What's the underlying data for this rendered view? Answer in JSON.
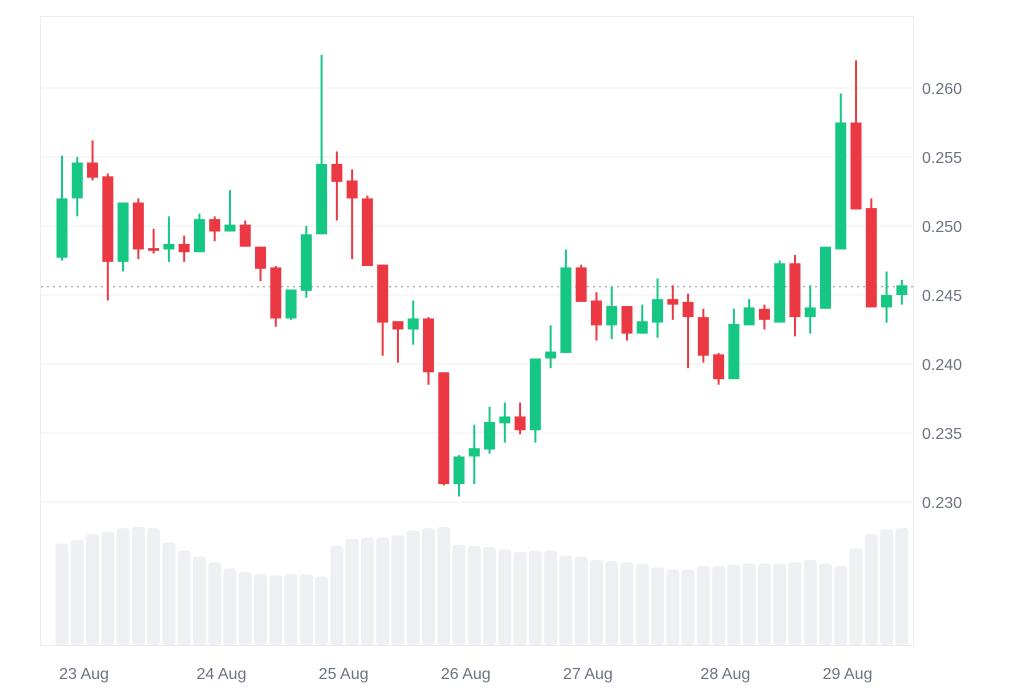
{
  "chart_data": {
    "type": "candlestick",
    "title": "",
    "xlabel": "",
    "ylabel": "",
    "ylim": [
      0.23,
      0.26
    ],
    "y_ticks": [
      "0.260",
      "0.255",
      "0.250",
      "0.245",
      "0.240",
      "0.235",
      "0.230"
    ],
    "x_ticks": [
      "23 Aug",
      "24 Aug",
      "25 Aug",
      "26 Aug",
      "27 Aug",
      "28 Aug",
      "29 Aug"
    ],
    "grid": true,
    "current_price_line": 0.2456,
    "colors": {
      "up": "#16c784",
      "down": "#ea3943",
      "volume": "#eef0f3",
      "grid": "#efefef",
      "axis_text": "#6b7280"
    },
    "candles": [
      {
        "o": 0.2477,
        "h": 0.2551,
        "l": 0.2475,
        "c": 0.252
      },
      {
        "o": 0.252,
        "h": 0.255,
        "l": 0.2507,
        "c": 0.2546
      },
      {
        "o": 0.2546,
        "h": 0.2562,
        "l": 0.2533,
        "c": 0.2535
      },
      {
        "o": 0.2536,
        "h": 0.2538,
        "l": 0.2446,
        "c": 0.2474
      },
      {
        "o": 0.2474,
        "h": 0.2517,
        "l": 0.2467,
        "c": 0.2517
      },
      {
        "o": 0.2517,
        "h": 0.252,
        "l": 0.2476,
        "c": 0.2483
      },
      {
        "o": 0.2484,
        "h": 0.2498,
        "l": 0.248,
        "c": 0.2482
      },
      {
        "o": 0.2483,
        "h": 0.2507,
        "l": 0.2474,
        "c": 0.2487
      },
      {
        "o": 0.2487,
        "h": 0.2493,
        "l": 0.2474,
        "c": 0.2481
      },
      {
        "o": 0.2481,
        "h": 0.2509,
        "l": 0.2481,
        "c": 0.2505
      },
      {
        "o": 0.2505,
        "h": 0.2507,
        "l": 0.2489,
        "c": 0.2496
      },
      {
        "o": 0.2496,
        "h": 0.2526,
        "l": 0.2496,
        "c": 0.2501
      },
      {
        "o": 0.2501,
        "h": 0.2504,
        "l": 0.2485,
        "c": 0.2485
      },
      {
        "o": 0.2485,
        "h": 0.2485,
        "l": 0.246,
        "c": 0.2469
      },
      {
        "o": 0.247,
        "h": 0.2471,
        "l": 0.2427,
        "c": 0.2433
      },
      {
        "o": 0.2433,
        "h": 0.2454,
        "l": 0.2432,
        "c": 0.2454
      },
      {
        "o": 0.2453,
        "h": 0.25,
        "l": 0.2448,
        "c": 0.2494
      },
      {
        "o": 0.2494,
        "h": 0.2624,
        "l": 0.2494,
        "c": 0.2545
      },
      {
        "o": 0.2545,
        "h": 0.2554,
        "l": 0.2504,
        "c": 0.2532
      },
      {
        "o": 0.2533,
        "h": 0.2541,
        "l": 0.2476,
        "c": 0.252
      },
      {
        "o": 0.252,
        "h": 0.2522,
        "l": 0.2471,
        "c": 0.2471
      },
      {
        "o": 0.2472,
        "h": 0.2472,
        "l": 0.2406,
        "c": 0.243
      },
      {
        "o": 0.2431,
        "h": 0.2431,
        "l": 0.2401,
        "c": 0.2425
      },
      {
        "o": 0.2425,
        "h": 0.2446,
        "l": 0.2414,
        "c": 0.2433
      },
      {
        "o": 0.2433,
        "h": 0.2434,
        "l": 0.2385,
        "c": 0.2394
      },
      {
        "o": 0.2394,
        "h": 0.2394,
        "l": 0.2312,
        "c": 0.2313
      },
      {
        "o": 0.2313,
        "h": 0.2334,
        "l": 0.2304,
        "c": 0.2333
      },
      {
        "o": 0.2333,
        "h": 0.2356,
        "l": 0.2313,
        "c": 0.2339
      },
      {
        "o": 0.2338,
        "h": 0.2369,
        "l": 0.2335,
        "c": 0.2358
      },
      {
        "o": 0.2357,
        "h": 0.2372,
        "l": 0.2343,
        "c": 0.2362
      },
      {
        "o": 0.2362,
        "h": 0.2372,
        "l": 0.2349,
        "c": 0.2352
      },
      {
        "o": 0.2352,
        "h": 0.2404,
        "l": 0.2343,
        "c": 0.2404
      },
      {
        "o": 0.2404,
        "h": 0.2428,
        "l": 0.2397,
        "c": 0.2409
      },
      {
        "o": 0.2408,
        "h": 0.2483,
        "l": 0.2408,
        "c": 0.247
      },
      {
        "o": 0.247,
        "h": 0.2472,
        "l": 0.2445,
        "c": 0.2445
      },
      {
        "o": 0.2446,
        "h": 0.2452,
        "l": 0.2417,
        "c": 0.2428
      },
      {
        "o": 0.2428,
        "h": 0.2456,
        "l": 0.2418,
        "c": 0.2442
      },
      {
        "o": 0.2442,
        "h": 0.2442,
        "l": 0.2417,
        "c": 0.2422
      },
      {
        "o": 0.2422,
        "h": 0.2443,
        "l": 0.2422,
        "c": 0.2431
      },
      {
        "o": 0.243,
        "h": 0.2462,
        "l": 0.2419,
        "c": 0.2447
      },
      {
        "o": 0.2447,
        "h": 0.2457,
        "l": 0.2432,
        "c": 0.2443
      },
      {
        "o": 0.2445,
        "h": 0.2451,
        "l": 0.2397,
        "c": 0.2434
      },
      {
        "o": 0.2434,
        "h": 0.244,
        "l": 0.2401,
        "c": 0.2406
      },
      {
        "o": 0.2407,
        "h": 0.2408,
        "l": 0.2385,
        "c": 0.2389
      },
      {
        "o": 0.2389,
        "h": 0.244,
        "l": 0.2389,
        "c": 0.2429
      },
      {
        "o": 0.2428,
        "h": 0.2447,
        "l": 0.2428,
        "c": 0.2441
      },
      {
        "o": 0.244,
        "h": 0.2443,
        "l": 0.2425,
        "c": 0.2432
      },
      {
        "o": 0.243,
        "h": 0.2475,
        "l": 0.243,
        "c": 0.2473
      },
      {
        "o": 0.2473,
        "h": 0.2479,
        "l": 0.242,
        "c": 0.2434
      },
      {
        "o": 0.2434,
        "h": 0.2457,
        "l": 0.2422,
        "c": 0.2441
      },
      {
        "o": 0.244,
        "h": 0.2485,
        "l": 0.244,
        "c": 0.2485
      },
      {
        "o": 0.2483,
        "h": 0.2596,
        "l": 0.2483,
        "c": 0.2575
      },
      {
        "o": 0.2575,
        "h": 0.262,
        "l": 0.2512,
        "c": 0.2512
      },
      {
        "o": 0.2513,
        "h": 0.252,
        "l": 0.2441,
        "c": 0.2441
      },
      {
        "o": 0.2441,
        "h": 0.2467,
        "l": 0.243,
        "c": 0.245
      },
      {
        "o": 0.245,
        "h": 0.2461,
        "l": 0.2443,
        "c": 0.2457
      }
    ],
    "volume_relative": [
      86,
      89,
      94,
      96,
      99,
      100,
      99,
      87,
      80,
      75,
      70,
      65,
      62,
      60,
      59,
      60,
      60,
      58,
      84,
      90,
      91,
      91,
      93,
      97,
      99,
      100,
      85,
      84,
      83,
      81,
      79,
      80,
      80,
      76,
      75,
      72,
      71,
      70,
      69,
      66,
      64,
      64,
      67,
      67,
      68,
      69,
      69,
      69,
      70,
      72,
      69,
      67,
      82,
      94,
      98,
      99
    ],
    "x_tick_candle_index": [
      0,
      9,
      17,
      25,
      33,
      42,
      50
    ]
  }
}
